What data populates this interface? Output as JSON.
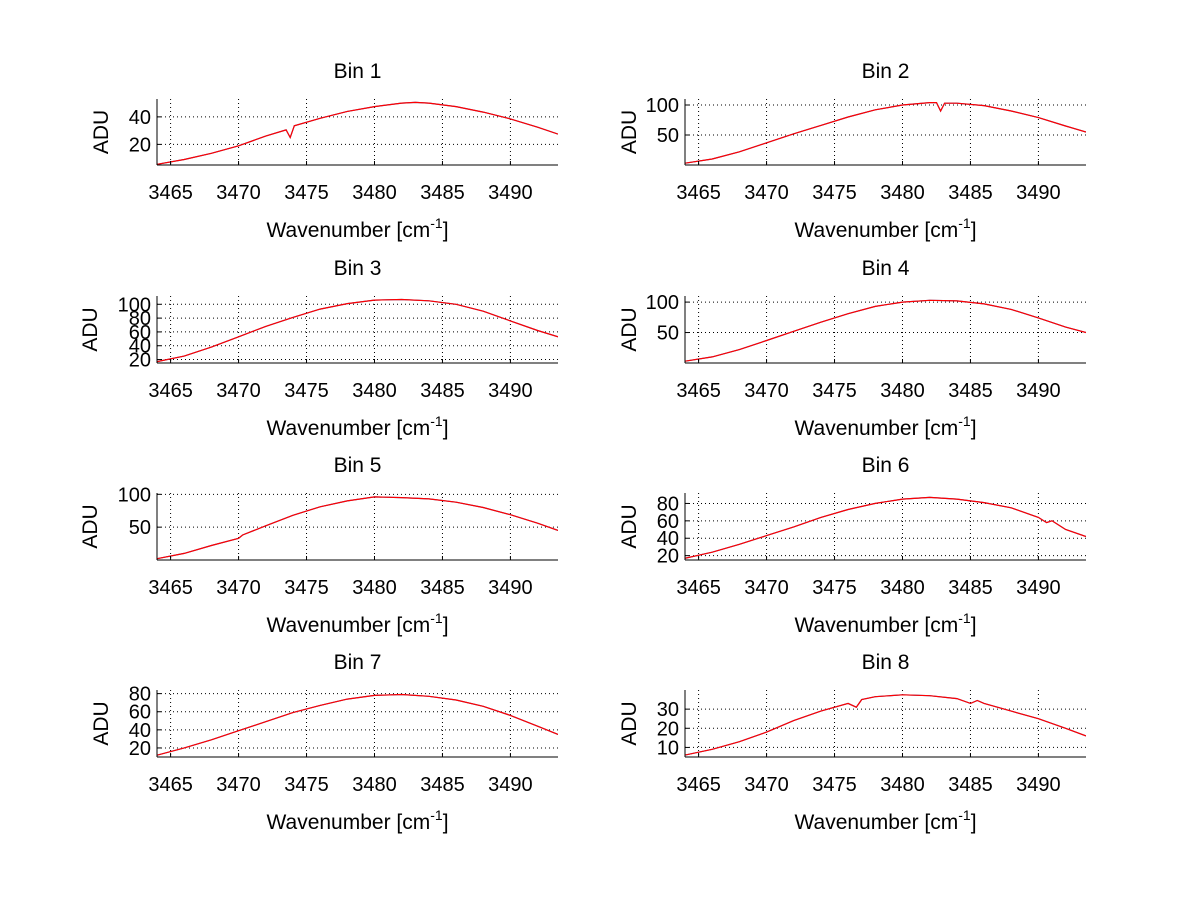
{
  "chart_data": [
    {
      "type": "line",
      "title": "Bin 1",
      "xlabel": "Wavenumber [cm",
      "xlabel_sup": "-1",
      "xlabel_end": "]",
      "ylabel": "ADU",
      "xlim": [
        3464,
        3493.5
      ],
      "ylim": [
        5,
        53
      ],
      "xticks": [
        3465,
        3470,
        3475,
        3480,
        3485,
        3490
      ],
      "yticks": [
        20,
        40
      ],
      "grid": true,
      "series": [
        {
          "color": "#2060c0",
          "x": [
            3464,
            3466,
            3468,
            3470,
            3472,
            3473.5,
            3473.8,
            3474.1,
            3476,
            3478,
            3480,
            3482,
            3483,
            3484,
            3486,
            3488,
            3490,
            3492,
            3493.5
          ],
          "y": [
            5.5,
            9,
            13.5,
            19,
            26,
            30.5,
            25,
            33.5,
            39,
            44,
            47.5,
            50,
            50.5,
            50,
            47.5,
            43.5,
            38.5,
            32.5,
            27.5
          ]
        },
        {
          "color": "#ff0000",
          "x": [
            3464,
            3466,
            3468,
            3470,
            3472,
            3473.5,
            3473.8,
            3474.1,
            3476,
            3478,
            3480,
            3482,
            3483,
            3484,
            3486,
            3488,
            3490,
            3492,
            3493.5
          ],
          "y": [
            5.5,
            9,
            13.5,
            19,
            26,
            30.5,
            25,
            33.5,
            39,
            44,
            47.5,
            50,
            50.5,
            50,
            47.5,
            43.5,
            38.5,
            32.5,
            27.5
          ]
        }
      ]
    },
    {
      "type": "line",
      "title": "Bin 2",
      "xlabel": "Wavenumber [cm",
      "xlabel_sup": "-1",
      "xlabel_end": "]",
      "ylabel": "ADU",
      "xlim": [
        3464,
        3493.5
      ],
      "ylim": [
        0,
        110
      ],
      "xticks": [
        3465,
        3470,
        3475,
        3480,
        3485,
        3490
      ],
      "yticks": [
        50,
        100
      ],
      "grid": true,
      "series": [
        {
          "color": "#2060c0",
          "x": [
            3464,
            3466,
            3468,
            3470,
            3472,
            3474,
            3476,
            3478,
            3480,
            3482,
            3482.5,
            3482.8,
            3483.1,
            3484,
            3486,
            3488,
            3490,
            3492,
            3493.5
          ],
          "y": [
            3,
            10,
            22,
            37,
            52,
            66,
            80,
            92,
            100,
            104,
            104,
            90,
            103,
            103,
            99,
            90,
            79,
            65,
            55
          ]
        },
        {
          "color": "#ff0000",
          "x": [
            3464,
            3466,
            3468,
            3470,
            3472,
            3474,
            3476,
            3478,
            3480,
            3482,
            3482.5,
            3482.8,
            3483.1,
            3484,
            3486,
            3488,
            3490,
            3492,
            3493.5
          ],
          "y": [
            3,
            10,
            22,
            37,
            52,
            66,
            80,
            92,
            100,
            104,
            104,
            90,
            103,
            103,
            99,
            90,
            79,
            65,
            55
          ]
        }
      ]
    },
    {
      "type": "line",
      "title": "Bin 3",
      "xlabel": "Wavenumber [cm",
      "xlabel_sup": "-1",
      "xlabel_end": "]",
      "ylabel": "ADU",
      "xlim": [
        3464,
        3493.5
      ],
      "ylim": [
        15,
        112
      ],
      "xticks": [
        3465,
        3470,
        3475,
        3480,
        3485,
        3490
      ],
      "yticks": [
        20,
        40,
        60,
        80,
        100
      ],
      "grid": true,
      "series": [
        {
          "color": "#2060c0",
          "x": [
            3464,
            3466,
            3468,
            3470,
            3472,
            3474,
            3476,
            3478,
            3480,
            3482,
            3484,
            3486,
            3488,
            3490,
            3492,
            3493.5
          ],
          "y": [
            17,
            25,
            38,
            53,
            68,
            81,
            93,
            101,
            106,
            107,
            105,
            100,
            90,
            76,
            62,
            53
          ]
        },
        {
          "color": "#ff0000",
          "x": [
            3464,
            3466,
            3468,
            3470,
            3472,
            3474,
            3476,
            3478,
            3480,
            3482,
            3484,
            3486,
            3488,
            3490,
            3492,
            3493.5
          ],
          "y": [
            17,
            25,
            38,
            53,
            68,
            81,
            93,
            101,
            106,
            107,
            105,
            100,
            90,
            76,
            62,
            53
          ]
        }
      ]
    },
    {
      "type": "line",
      "title": "Bin 4",
      "xlabel": "Wavenumber [cm",
      "xlabel_sup": "-1",
      "xlabel_end": "]",
      "ylabel": "ADU",
      "xlim": [
        3464,
        3493.5
      ],
      "ylim": [
        0,
        110
      ],
      "xticks": [
        3465,
        3470,
        3475,
        3480,
        3485,
        3490
      ],
      "yticks": [
        50,
        100
      ],
      "grid": true,
      "series": [
        {
          "color": "#2060c0",
          "x": [
            3464,
            3466,
            3468,
            3470,
            3472,
            3474,
            3476,
            3478,
            3480,
            3482,
            3484,
            3486,
            3488,
            3490,
            3492,
            3493.5
          ],
          "y": [
            3,
            10,
            22,
            37,
            52,
            67,
            81,
            93,
            100,
            103,
            102,
            97,
            88,
            74,
            59,
            50
          ]
        },
        {
          "color": "#ff0000",
          "x": [
            3464,
            3466,
            3468,
            3470,
            3472,
            3474,
            3476,
            3478,
            3480,
            3482,
            3484,
            3486,
            3488,
            3490,
            3492,
            3493.5
          ],
          "y": [
            3,
            10,
            22,
            37,
            52,
            67,
            81,
            93,
            100,
            103,
            102,
            97,
            88,
            74,
            59,
            50
          ]
        }
      ]
    },
    {
      "type": "line",
      "title": "Bin 5",
      "xlabel": "Wavenumber [cm",
      "xlabel_sup": "-1",
      "xlabel_end": "]",
      "ylabel": "ADU",
      "xlim": [
        3464,
        3493.5
      ],
      "ylim": [
        0,
        102
      ],
      "xticks": [
        3465,
        3470,
        3475,
        3480,
        3485,
        3490
      ],
      "yticks": [
        50,
        100
      ],
      "grid": true,
      "series": [
        {
          "color": "#2060c0",
          "x": [
            3464,
            3466,
            3468,
            3470,
            3470.3,
            3472,
            3474,
            3476,
            3478,
            3480,
            3482,
            3484,
            3486,
            3488,
            3490,
            3492,
            3493.5
          ],
          "y": [
            2,
            10,
            22,
            33,
            38,
            52,
            68,
            81,
            90,
            96,
            95,
            93,
            88,
            80,
            69,
            56,
            45
          ]
        },
        {
          "color": "#ff0000",
          "x": [
            3464,
            3466,
            3468,
            3470,
            3470.3,
            3472,
            3474,
            3476,
            3478,
            3480,
            3482,
            3484,
            3486,
            3488,
            3490,
            3492,
            3493.5
          ],
          "y": [
            2,
            10,
            22,
            33,
            38,
            52,
            68,
            81,
            90,
            96,
            95,
            93,
            88,
            80,
            69,
            56,
            45
          ]
        }
      ]
    },
    {
      "type": "line",
      "title": "Bin 6",
      "xlabel": "Wavenumber [cm",
      "xlabel_sup": "-1",
      "xlabel_end": "]",
      "ylabel": "ADU",
      "xlim": [
        3464,
        3493.5
      ],
      "ylim": [
        15,
        92
      ],
      "xticks": [
        3465,
        3470,
        3475,
        3480,
        3485,
        3490
      ],
      "yticks": [
        20,
        40,
        60,
        80
      ],
      "grid": true,
      "series": [
        {
          "color": "#2060c0",
          "x": [
            3464,
            3466,
            3468,
            3470,
            3472,
            3474,
            3476,
            3478,
            3480,
            3482,
            3484,
            3486,
            3488,
            3490,
            3490.6,
            3491,
            3492,
            3493.5
          ],
          "y": [
            17,
            24,
            33,
            43,
            53,
            64,
            73,
            80,
            85,
            87,
            85,
            81,
            75,
            64,
            58,
            60,
            50,
            42
          ]
        },
        {
          "color": "#ff0000",
          "x": [
            3464,
            3466,
            3468,
            3470,
            3472,
            3474,
            3476,
            3478,
            3480,
            3482,
            3484,
            3486,
            3488,
            3490,
            3490.6,
            3491,
            3492,
            3493.5
          ],
          "y": [
            17,
            24,
            33,
            43,
            53,
            64,
            73,
            80,
            85,
            87,
            85,
            81,
            75,
            64,
            58,
            60,
            50,
            42
          ]
        }
      ]
    },
    {
      "type": "line",
      "title": "Bin 7",
      "xlabel": "Wavenumber [cm",
      "xlabel_sup": "-1",
      "xlabel_end": "]",
      "ylabel": "ADU",
      "xlim": [
        3464,
        3493.5
      ],
      "ylim": [
        10,
        84
      ],
      "xticks": [
        3465,
        3470,
        3475,
        3480,
        3485,
        3490
      ],
      "yticks": [
        20,
        40,
        60,
        80
      ],
      "grid": true,
      "series": [
        {
          "color": "#2060c0",
          "x": [
            3464,
            3466,
            3468,
            3470,
            3472,
            3474,
            3476,
            3478,
            3480,
            3482,
            3484,
            3486,
            3488,
            3490,
            3492,
            3493.5
          ],
          "y": [
            12,
            20,
            29,
            39,
            49,
            59,
            67,
            74,
            78,
            79,
            77,
            73,
            66,
            56,
            44,
            35
          ]
        },
        {
          "color": "#ff0000",
          "x": [
            3464,
            3466,
            3468,
            3470,
            3472,
            3474,
            3476,
            3478,
            3480,
            3482,
            3484,
            3486,
            3488,
            3490,
            3492,
            3493.5
          ],
          "y": [
            12,
            20,
            29,
            39,
            49,
            59,
            67,
            74,
            78,
            79,
            77,
            73,
            66,
            56,
            44,
            35
          ]
        }
      ]
    },
    {
      "type": "line",
      "title": "Bin 8",
      "xlabel": "Wavenumber [cm",
      "xlabel_sup": "-1",
      "xlabel_end": "]",
      "ylabel": "ADU",
      "xlim": [
        3464,
        3493.5
      ],
      "ylim": [
        5,
        40
      ],
      "xticks": [
        3465,
        3470,
        3475,
        3480,
        3485,
        3490
      ],
      "yticks": [
        10,
        20,
        30
      ],
      "grid": true,
      "series": [
        {
          "color": "#2060c0",
          "x": [
            3464,
            3466,
            3468,
            3470,
            3472,
            3474,
            3476,
            3476.6,
            3477,
            3478,
            3480,
            3482,
            3484,
            3485,
            3485.5,
            3486,
            3488,
            3490,
            3492,
            3493.5
          ],
          "y": [
            6,
            9,
            13,
            18,
            24,
            29,
            33,
            31,
            35,
            36.5,
            37.5,
            37,
            35.5,
            33,
            34.5,
            33,
            29,
            25,
            20,
            16
          ]
        },
        {
          "color": "#ff0000",
          "x": [
            3464,
            3466,
            3468,
            3470,
            3472,
            3474,
            3476,
            3476.6,
            3477,
            3478,
            3480,
            3482,
            3484,
            3485,
            3485.5,
            3486,
            3488,
            3490,
            3492,
            3493.5
          ],
          "y": [
            6,
            9,
            13,
            18,
            24,
            29,
            33,
            31,
            35,
            36.5,
            37.5,
            37,
            35.5,
            33,
            34.5,
            33,
            29,
            25,
            20,
            16
          ]
        }
      ]
    }
  ]
}
